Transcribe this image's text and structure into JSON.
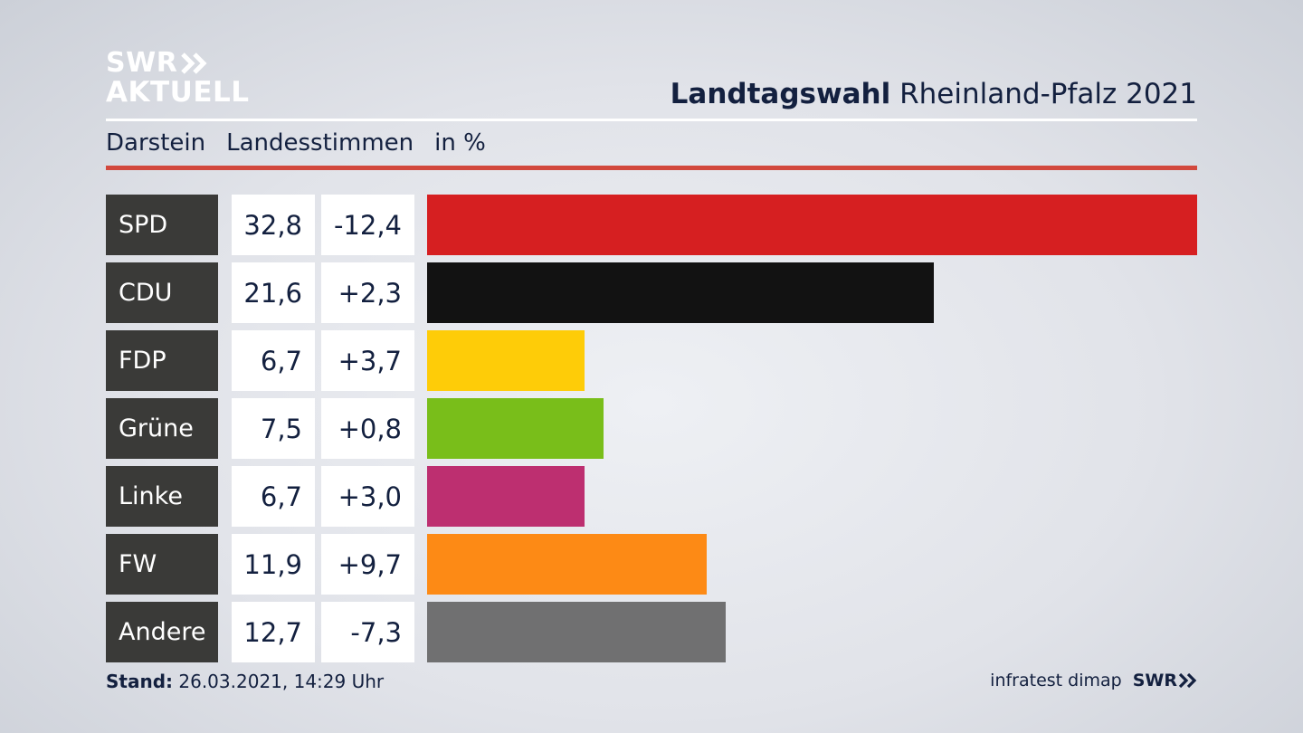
{
  "logo": {
    "line1": "SWR",
    "line2": "AKTUELL"
  },
  "header": {
    "title_bold": "Landtagswahl",
    "title_rest": "Rheinland-Pfalz 2021"
  },
  "subheader": {
    "region": "Darstein",
    "metric": "Landesstimmen",
    "unit": "in %"
  },
  "colors": {
    "accent_rule": "#d2483d",
    "label_bg": "#3a3a38"
  },
  "chart_data": {
    "type": "bar",
    "orientation": "horizontal",
    "categories": [
      "SPD",
      "CDU",
      "FDP",
      "Grüne",
      "Linke",
      "FW",
      "Andere"
    ],
    "values": [
      32.8,
      21.6,
      6.7,
      7.5,
      6.7,
      11.9,
      12.7
    ],
    "value_labels": [
      "32,8",
      "21,6",
      "6,7",
      "7,5",
      "6,7",
      "11,9",
      "12,7"
    ],
    "changes": [
      -12.4,
      2.3,
      3.7,
      0.8,
      3.0,
      9.7,
      -7.3
    ],
    "change_labels": [
      "-12,4",
      "+2,3",
      "+3,7",
      "+0,8",
      "+3,0",
      "+9,7",
      "-7,3"
    ],
    "colors": [
      "#d61f21",
      "#121212",
      "#fecc08",
      "#79be1a",
      "#bd2f70",
      "#fd8a15",
      "#707071"
    ],
    "xlim": [
      0,
      32.8
    ]
  },
  "footer": {
    "stand_label": "Stand:",
    "stand_value": "26.03.2021, 14:29 Uhr",
    "source": "infratest dimap",
    "brand": "SWR"
  }
}
